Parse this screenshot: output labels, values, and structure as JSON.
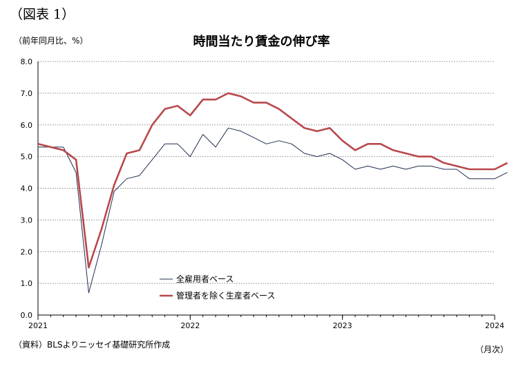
{
  "figure_label": "（図表 1）",
  "unit_label": "（前年同月比、%）",
  "source_note": "（資料）BLSよりニッセイ基礎研究所作成",
  "x_unit_label": "（月次）",
  "chart_data": {
    "type": "line",
    "title": "時間当たり賃金の伸び率",
    "xlabel": "",
    "ylabel": "",
    "ylim": [
      0,
      8
    ],
    "yticks": [
      "0.0",
      "1.0",
      "2.0",
      "3.0",
      "4.0",
      "5.0",
      "6.0",
      "7.0",
      "8.0"
    ],
    "xtick_labels": [
      "2021",
      "2022",
      "2023",
      "2024"
    ],
    "x_start": "2021-01",
    "grid": true,
    "legend_position": "bottom-center",
    "series": [
      {
        "name": "全雇用者ベース",
        "color": "#1f2f4f",
        "values": [
          5.3,
          5.3,
          5.3,
          4.5,
          0.7,
          2.2,
          3.9,
          4.3,
          4.4,
          4.9,
          5.4,
          5.4,
          5.0,
          5.7,
          5.3,
          5.9,
          5.8,
          5.6,
          5.4,
          5.5,
          5.4,
          5.1,
          5.0,
          5.1,
          4.9,
          4.6,
          4.7,
          4.6,
          4.7,
          4.6,
          4.7,
          4.7,
          4.6,
          4.6,
          4.3,
          4.3,
          4.3,
          4.5
        ]
      },
      {
        "name": "管理者を除く生産者ベース",
        "color": "#b9474a",
        "values": [
          5.4,
          5.3,
          5.2,
          4.9,
          1.5,
          2.7,
          4.1,
          5.1,
          5.2,
          6.0,
          6.5,
          6.6,
          6.3,
          6.8,
          6.8,
          7.0,
          6.9,
          6.7,
          6.7,
          6.5,
          6.2,
          5.9,
          5.8,
          5.9,
          5.5,
          5.2,
          5.4,
          5.4,
          5.2,
          5.1,
          5.0,
          5.0,
          4.8,
          4.7,
          4.6,
          4.6,
          4.6,
          4.8
        ]
      }
    ]
  }
}
